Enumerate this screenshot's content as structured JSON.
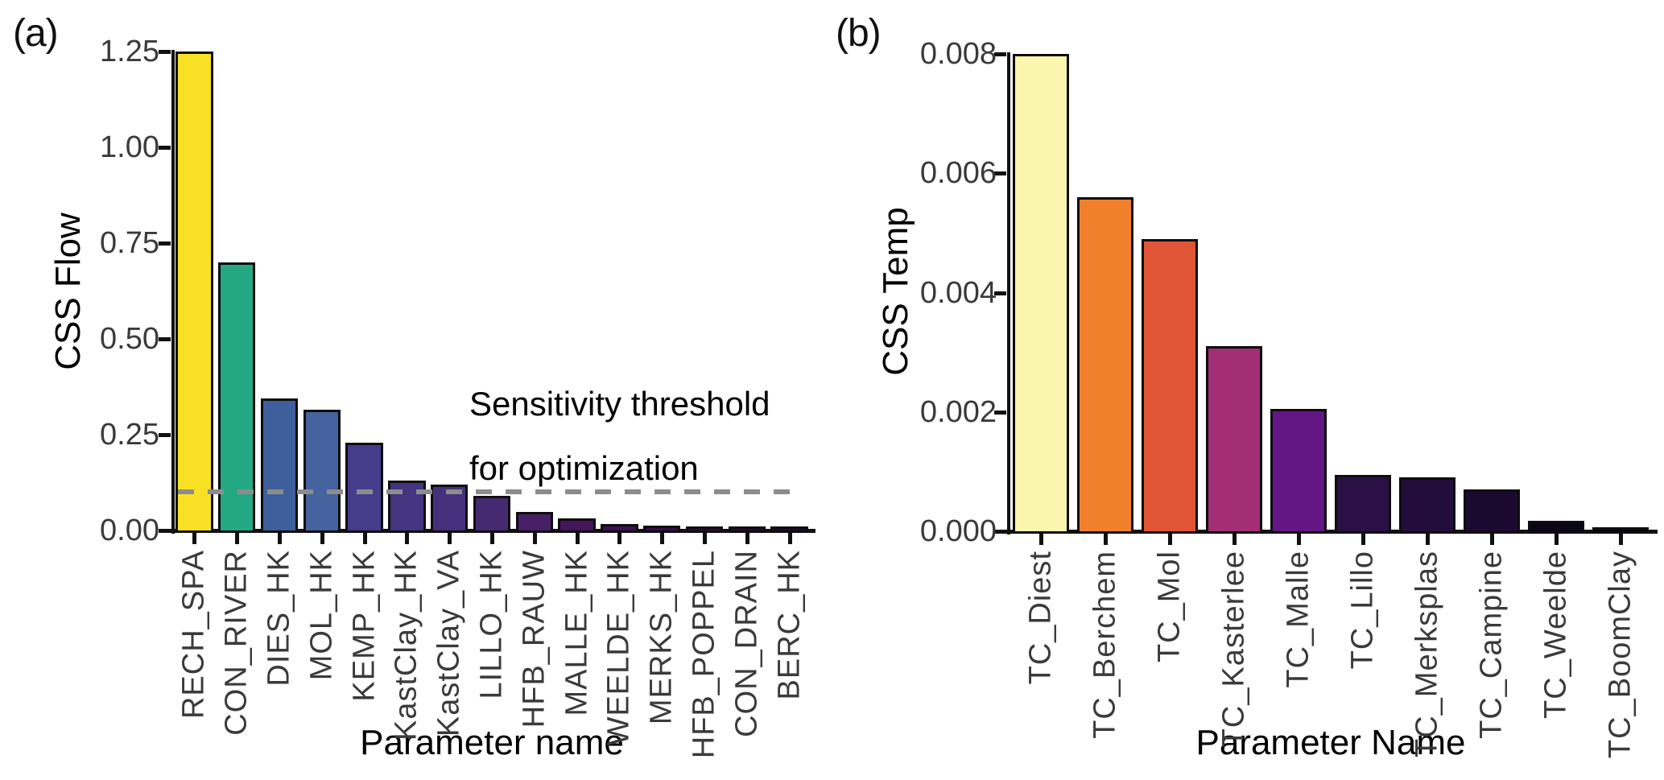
{
  "panels": {
    "a": "(a)",
    "b": "(b)"
  },
  "chart_data": [
    {
      "id": "a",
      "type": "bar",
      "xlabel": "Parameter name",
      "ylabel": "CSS Flow",
      "ylim": [
        0,
        1.25
      ],
      "grid": false,
      "ytick_values": [
        0,
        0.25,
        0.5,
        0.75,
        1.0,
        1.25
      ],
      "ytick_labels": [
        "0.00",
        "0.25",
        "0.50",
        "0.75",
        "1.00",
        "1.25"
      ],
      "categories": [
        "RECH_SPA",
        "CON_RIVER",
        "DIES_HK",
        "MOL_HK",
        "KEMP_HK",
        "KastClay_HK",
        "KastClay_VA",
        "LILLO_HK",
        "HFB_RAUW",
        "MALLE_HK",
        "WEELDE_HK",
        "MERKS_HK",
        "HFB_POPPEL",
        "CON_DRAIN",
        "BERC_HK"
      ],
      "values": [
        1.25,
        0.7,
        0.345,
        0.315,
        0.23,
        0.13,
        0.12,
        0.09,
        0.048,
        0.031,
        0.016,
        0.013,
        0.01,
        0.009,
        0.008
      ],
      "bar_colors": [
        "#F8E125",
        "#23A884",
        "#3E5F9B",
        "#44629E",
        "#453C8C",
        "#433580",
        "#46307C",
        "#452A71",
        "#471F66",
        "#46155C",
        "#400F52",
        "#3A0B4B",
        "#340745",
        "#300440",
        "#2C023B"
      ],
      "bar_edge_color": "#0d0d0d",
      "threshold": {
        "value": 0.1,
        "color": "#8C8C8C",
        "label_line1": "Sensitivity threshold",
        "label_line2": "for optimization"
      }
    },
    {
      "id": "b",
      "type": "bar",
      "xlabel": "Parameter Name",
      "ylabel": "CSS Temp",
      "ylim": [
        0,
        0.008
      ],
      "grid": false,
      "ytick_values": [
        0,
        0.002,
        0.004,
        0.006,
        0.008
      ],
      "ytick_labels": [
        "0.000",
        "0.002",
        "0.004",
        "0.006",
        "0.008"
      ],
      "categories": [
        "TC_Diest",
        "TC_Berchem",
        "TC_Mol",
        "TC_Kasterlee",
        "TC_Malle",
        "TC_Lillo",
        "TC_Merksplas",
        "TC_Campine",
        "TC_Weelde",
        "TC_BoomClay"
      ],
      "values": [
        0.008,
        0.0056,
        0.0049,
        0.0031,
        0.00205,
        0.00095,
        0.0009,
        0.0007,
        0.00018,
        6e-05
      ],
      "bar_colors": [
        "#FAF6AE",
        "#F0802C",
        "#E05536",
        "#A22E74",
        "#651685",
        "#2A1045",
        "#230E3B",
        "#1B0A30",
        "#0B0517",
        "#05030C"
      ],
      "bar_edge_color": "#0d0d0d"
    }
  ]
}
